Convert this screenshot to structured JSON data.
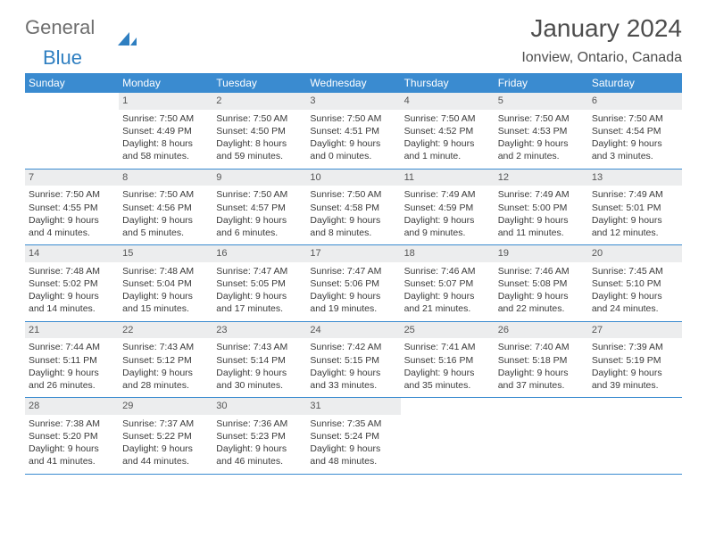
{
  "brand": {
    "part1": "General",
    "part2": "Blue"
  },
  "title": "January 2024",
  "location": "Ionview, Ontario, Canada",
  "colors": {
    "header_bg": "#3a8bd0",
    "header_text": "#ffffff",
    "daynum_bg": "#ecedee",
    "text": "#3a3a3a",
    "brand_gray": "#6e6e6e",
    "brand_blue": "#2f7fc1"
  },
  "day_names": [
    "Sunday",
    "Monday",
    "Tuesday",
    "Wednesday",
    "Thursday",
    "Friday",
    "Saturday"
  ],
  "weeks": [
    [
      {
        "n": "",
        "lines": []
      },
      {
        "n": "1",
        "lines": [
          "Sunrise: 7:50 AM",
          "Sunset: 4:49 PM",
          "Daylight: 8 hours and 58 minutes."
        ]
      },
      {
        "n": "2",
        "lines": [
          "Sunrise: 7:50 AM",
          "Sunset: 4:50 PM",
          "Daylight: 8 hours and 59 minutes."
        ]
      },
      {
        "n": "3",
        "lines": [
          "Sunrise: 7:50 AM",
          "Sunset: 4:51 PM",
          "Daylight: 9 hours and 0 minutes."
        ]
      },
      {
        "n": "4",
        "lines": [
          "Sunrise: 7:50 AM",
          "Sunset: 4:52 PM",
          "Daylight: 9 hours and 1 minute."
        ]
      },
      {
        "n": "5",
        "lines": [
          "Sunrise: 7:50 AM",
          "Sunset: 4:53 PM",
          "Daylight: 9 hours and 2 minutes."
        ]
      },
      {
        "n": "6",
        "lines": [
          "Sunrise: 7:50 AM",
          "Sunset: 4:54 PM",
          "Daylight: 9 hours and 3 minutes."
        ]
      }
    ],
    [
      {
        "n": "7",
        "lines": [
          "Sunrise: 7:50 AM",
          "Sunset: 4:55 PM",
          "Daylight: 9 hours and 4 minutes."
        ]
      },
      {
        "n": "8",
        "lines": [
          "Sunrise: 7:50 AM",
          "Sunset: 4:56 PM",
          "Daylight: 9 hours and 5 minutes."
        ]
      },
      {
        "n": "9",
        "lines": [
          "Sunrise: 7:50 AM",
          "Sunset: 4:57 PM",
          "Daylight: 9 hours and 6 minutes."
        ]
      },
      {
        "n": "10",
        "lines": [
          "Sunrise: 7:50 AM",
          "Sunset: 4:58 PM",
          "Daylight: 9 hours and 8 minutes."
        ]
      },
      {
        "n": "11",
        "lines": [
          "Sunrise: 7:49 AM",
          "Sunset: 4:59 PM",
          "Daylight: 9 hours and 9 minutes."
        ]
      },
      {
        "n": "12",
        "lines": [
          "Sunrise: 7:49 AM",
          "Sunset: 5:00 PM",
          "Daylight: 9 hours and 11 minutes."
        ]
      },
      {
        "n": "13",
        "lines": [
          "Sunrise: 7:49 AM",
          "Sunset: 5:01 PM",
          "Daylight: 9 hours and 12 minutes."
        ]
      }
    ],
    [
      {
        "n": "14",
        "lines": [
          "Sunrise: 7:48 AM",
          "Sunset: 5:02 PM",
          "Daylight: 9 hours and 14 minutes."
        ]
      },
      {
        "n": "15",
        "lines": [
          "Sunrise: 7:48 AM",
          "Sunset: 5:04 PM",
          "Daylight: 9 hours and 15 minutes."
        ]
      },
      {
        "n": "16",
        "lines": [
          "Sunrise: 7:47 AM",
          "Sunset: 5:05 PM",
          "Daylight: 9 hours and 17 minutes."
        ]
      },
      {
        "n": "17",
        "lines": [
          "Sunrise: 7:47 AM",
          "Sunset: 5:06 PM",
          "Daylight: 9 hours and 19 minutes."
        ]
      },
      {
        "n": "18",
        "lines": [
          "Sunrise: 7:46 AM",
          "Sunset: 5:07 PM",
          "Daylight: 9 hours and 21 minutes."
        ]
      },
      {
        "n": "19",
        "lines": [
          "Sunrise: 7:46 AM",
          "Sunset: 5:08 PM",
          "Daylight: 9 hours and 22 minutes."
        ]
      },
      {
        "n": "20",
        "lines": [
          "Sunrise: 7:45 AM",
          "Sunset: 5:10 PM",
          "Daylight: 9 hours and 24 minutes."
        ]
      }
    ],
    [
      {
        "n": "21",
        "lines": [
          "Sunrise: 7:44 AM",
          "Sunset: 5:11 PM",
          "Daylight: 9 hours and 26 minutes."
        ]
      },
      {
        "n": "22",
        "lines": [
          "Sunrise: 7:43 AM",
          "Sunset: 5:12 PM",
          "Daylight: 9 hours and 28 minutes."
        ]
      },
      {
        "n": "23",
        "lines": [
          "Sunrise: 7:43 AM",
          "Sunset: 5:14 PM",
          "Daylight: 9 hours and 30 minutes."
        ]
      },
      {
        "n": "24",
        "lines": [
          "Sunrise: 7:42 AM",
          "Sunset: 5:15 PM",
          "Daylight: 9 hours and 33 minutes."
        ]
      },
      {
        "n": "25",
        "lines": [
          "Sunrise: 7:41 AM",
          "Sunset: 5:16 PM",
          "Daylight: 9 hours and 35 minutes."
        ]
      },
      {
        "n": "26",
        "lines": [
          "Sunrise: 7:40 AM",
          "Sunset: 5:18 PM",
          "Daylight: 9 hours and 37 minutes."
        ]
      },
      {
        "n": "27",
        "lines": [
          "Sunrise: 7:39 AM",
          "Sunset: 5:19 PM",
          "Daylight: 9 hours and 39 minutes."
        ]
      }
    ],
    [
      {
        "n": "28",
        "lines": [
          "Sunrise: 7:38 AM",
          "Sunset: 5:20 PM",
          "Daylight: 9 hours and 41 minutes."
        ]
      },
      {
        "n": "29",
        "lines": [
          "Sunrise: 7:37 AM",
          "Sunset: 5:22 PM",
          "Daylight: 9 hours and 44 minutes."
        ]
      },
      {
        "n": "30",
        "lines": [
          "Sunrise: 7:36 AM",
          "Sunset: 5:23 PM",
          "Daylight: 9 hours and 46 minutes."
        ]
      },
      {
        "n": "31",
        "lines": [
          "Sunrise: 7:35 AM",
          "Sunset: 5:24 PM",
          "Daylight: 9 hours and 48 minutes."
        ]
      },
      {
        "n": "",
        "lines": []
      },
      {
        "n": "",
        "lines": []
      },
      {
        "n": "",
        "lines": []
      }
    ]
  ]
}
